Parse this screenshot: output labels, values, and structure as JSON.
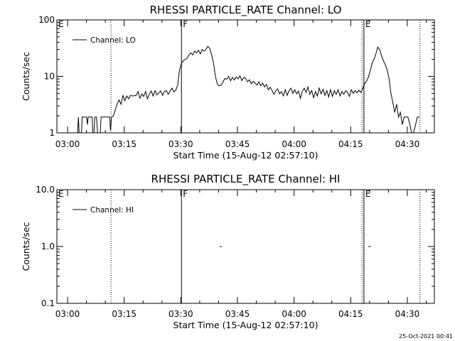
{
  "footer": {
    "timestamp": "25-Oct-2021 00:41"
  },
  "chart_data": [
    {
      "type": "line",
      "title": "RHESSI PARTICLE_RATE Channel: LO",
      "xlabel": "Start Time (15-Aug-12 02:57:10)",
      "ylabel": "Counts/sec",
      "y_scale": "log",
      "ylim": [
        1,
        100
      ],
      "xlim": [
        "02:57:10",
        "04:37:10"
      ],
      "x_ticks": [
        "03:00",
        "03:15",
        "03:30",
        "03:45",
        "04:00",
        "04:15",
        "04:30"
      ],
      "y_ticks": [
        "1",
        "10",
        "100"
      ],
      "legend": {
        "position": "top-left"
      },
      "series": [
        {
          "name": "Channel: LO",
          "points": [
            [
              "03:02:40",
              0.95
            ],
            [
              "03:02:46",
              1.4
            ],
            [
              "03:02:52",
              1.9
            ],
            [
              "03:02:58",
              1.4
            ],
            [
              "03:03:04",
              0.95
            ],
            [
              "03:03:40",
              0.95
            ],
            [
              "03:03:52",
              1.9
            ],
            [
              "03:05:04",
              1.9
            ],
            [
              "03:05:16",
              1.4
            ],
            [
              "03:05:28",
              1.9
            ],
            [
              "03:06:30",
              1.9
            ],
            [
              "03:06:42",
              0.95
            ],
            [
              "03:07:00",
              0.95
            ],
            [
              "03:07:12",
              1.9
            ],
            [
              "03:07:40",
              1.9
            ],
            [
              "03:07:58",
              0.95
            ],
            [
              "03:08:40",
              0.95
            ],
            [
              "03:08:52",
              1.9
            ],
            [
              "03:11:10",
              1.9
            ],
            [
              "03:11:22",
              1.1
            ],
            [
              "03:11:40",
              1.9
            ],
            [
              "03:12:10",
              2.0
            ],
            [
              "03:12:40",
              2.6
            ],
            [
              "03:13:10",
              3.3
            ],
            [
              "03:13:40",
              3.8
            ],
            [
              "03:14:10",
              3.2
            ],
            [
              "03:14:40",
              4.6
            ],
            [
              "03:15:10",
              3.7
            ],
            [
              "03:15:40",
              4.5
            ],
            [
              "03:16:10",
              4.0
            ],
            [
              "03:16:40",
              4.6
            ],
            [
              "03:17:10",
              4.5
            ],
            [
              "03:18:10",
              4.6
            ],
            [
              "03:18:40",
              5.4
            ],
            [
              "03:19:10",
              4.1
            ],
            [
              "03:19:40",
              4.9
            ],
            [
              "03:20:10",
              4.4
            ],
            [
              "03:20:40",
              5.4
            ],
            [
              "03:21:10",
              4.0
            ],
            [
              "03:21:40",
              4.9
            ],
            [
              "03:22:10",
              5.5
            ],
            [
              "03:22:40",
              4.5
            ],
            [
              "03:23:10",
              5.6
            ],
            [
              "03:23:40",
              4.7
            ],
            [
              "03:24:10",
              5.1
            ],
            [
              "03:24:40",
              5.5
            ],
            [
              "03:25:10",
              4.6
            ],
            [
              "03:25:40",
              5.4
            ],
            [
              "03:26:10",
              5.6
            ],
            [
              "03:26:40",
              4.8
            ],
            [
              "03:27:10",
              5.5
            ],
            [
              "03:27:40",
              6.2
            ],
            [
              "03:28:10",
              5.3
            ],
            [
              "03:28:40",
              5.7
            ],
            [
              "03:29:10",
              7.0
            ],
            [
              "03:29:40",
              13
            ],
            [
              "03:30:10",
              17
            ],
            [
              "03:30:40",
              19
            ],
            [
              "03:31:10",
              20
            ],
            [
              "03:31:40",
              21
            ],
            [
              "03:32:10",
              24
            ],
            [
              "03:32:40",
              26
            ],
            [
              "03:33:10",
              24
            ],
            [
              "03:33:40",
              28
            ],
            [
              "03:34:10",
              26
            ],
            [
              "03:34:40",
              29
            ],
            [
              "03:35:10",
              25
            ],
            [
              "03:35:40",
              30
            ],
            [
              "03:36:10",
              28
            ],
            [
              "03:36:40",
              30
            ],
            [
              "03:37:10",
              34
            ],
            [
              "03:37:40",
              31
            ],
            [
              "03:38:10",
              24
            ],
            [
              "03:38:40",
              17
            ],
            [
              "03:39:10",
              10
            ],
            [
              "03:39:40",
              7.3
            ],
            [
              "03:40:10",
              6.8
            ],
            [
              "03:40:40",
              7.0
            ],
            [
              "03:41:10",
              7.9
            ],
            [
              "03:41:40",
              9.2
            ],
            [
              "03:42:10",
              8.9
            ],
            [
              "03:42:40",
              10.0
            ],
            [
              "03:43:10",
              8.4
            ],
            [
              "03:43:40",
              9.6
            ],
            [
              "03:44:10",
              8.6
            ],
            [
              "03:44:40",
              9.8
            ],
            [
              "03:45:10",
              9.0
            ],
            [
              "03:45:40",
              10.2
            ],
            [
              "03:46:10",
              8.4
            ],
            [
              "03:46:40",
              9.6
            ],
            [
              "03:47:10",
              9.2
            ],
            [
              "03:47:40",
              8.0
            ],
            [
              "03:48:10",
              8.7
            ],
            [
              "03:48:40",
              7.4
            ],
            [
              "03:49:10",
              8.2
            ],
            [
              "03:49:40",
              7.6
            ],
            [
              "03:50:10",
              7.0
            ],
            [
              "03:50:40",
              8.0
            ],
            [
              "03:51:10",
              6.8
            ],
            [
              "03:51:40",
              7.6
            ],
            [
              "03:52:10",
              6.5
            ],
            [
              "03:52:40",
              7.2
            ],
            [
              "03:53:10",
              5.8
            ],
            [
              "03:53:40",
              6.4
            ],
            [
              "03:54:10",
              5.6
            ],
            [
              "03:54:40",
              4.8
            ],
            [
              "03:55:10",
              5.6
            ],
            [
              "03:55:40",
              6.0
            ],
            [
              "03:56:10",
              4.9
            ],
            [
              "03:56:40",
              5.4
            ],
            [
              "03:57:10",
              4.5
            ],
            [
              "03:57:40",
              5.8
            ],
            [
              "03:58:10",
              4.6
            ],
            [
              "03:58:40",
              5.6
            ],
            [
              "03:59:10",
              6.2
            ],
            [
              "03:59:40",
              5.0
            ],
            [
              "04:00:10",
              5.8
            ],
            [
              "04:00:40",
              4.9
            ],
            [
              "04:01:10",
              5.5
            ],
            [
              "04:01:40",
              4.1
            ],
            [
              "04:02:10",
              5.4
            ],
            [
              "04:02:40",
              6.2
            ],
            [
              "04:03:10",
              5.2
            ],
            [
              "04:03:40",
              6.5
            ],
            [
              "04:04:10",
              4.8
            ],
            [
              "04:04:40",
              5.6
            ],
            [
              "04:05:10",
              4.2
            ],
            [
              "04:05:40",
              5.4
            ],
            [
              "04:06:10",
              4.5
            ],
            [
              "04:06:40",
              6.2
            ],
            [
              "04:07:10",
              4.9
            ],
            [
              "04:07:40",
              5.9
            ],
            [
              "04:08:10",
              4.6
            ],
            [
              "04:08:40",
              5.6
            ],
            [
              "04:09:10",
              4.3
            ],
            [
              "04:09:40",
              5.8
            ],
            [
              "04:10:10",
              4.4
            ],
            [
              "04:10:40",
              5.6
            ],
            [
              "04:11:10",
              4.8
            ],
            [
              "04:11:40",
              5.8
            ],
            [
              "04:12:10",
              4.5
            ],
            [
              "04:12:40",
              5.4
            ],
            [
              "04:13:10",
              4.8
            ],
            [
              "04:13:40",
              5.6
            ],
            [
              "04:14:10",
              5.2
            ],
            [
              "04:14:40",
              4.4
            ],
            [
              "04:15:10",
              5.8
            ],
            [
              "04:15:40",
              5.0
            ],
            [
              "04:16:10",
              5.6
            ],
            [
              "04:16:40",
              5.1
            ],
            [
              "04:17:10",
              5.7
            ],
            [
              "04:17:40",
              5.2
            ],
            [
              "04:18:10",
              6.0
            ],
            [
              "04:18:40",
              7.4
            ],
            [
              "04:19:10",
              8.2
            ],
            [
              "04:19:40",
              9.6
            ],
            [
              "04:20:10",
              12.5
            ],
            [
              "04:20:40",
              17
            ],
            [
              "04:21:10",
              20
            ],
            [
              "04:21:40",
              25
            ],
            [
              "04:22:10",
              33
            ],
            [
              "04:22:40",
              30
            ],
            [
              "04:23:10",
              23
            ],
            [
              "04:23:40",
              19
            ],
            [
              "04:24:10",
              16
            ],
            [
              "04:24:40",
              13
            ],
            [
              "04:25:10",
              9.0
            ],
            [
              "04:25:40",
              5.0
            ],
            [
              "04:26:10",
              3.4
            ],
            [
              "04:26:40",
              2.3
            ],
            [
              "04:27:10",
              3.2
            ],
            [
              "04:27:40",
              1.9
            ],
            [
              "04:28:10",
              2.3
            ],
            [
              "04:28:40",
              1.4
            ],
            [
              "04:29:10",
              1.9
            ],
            [
              "04:30:10",
              1.9
            ],
            [
              "04:30:40",
              1.4
            ],
            [
              "04:31:10",
              0.95
            ],
            [
              "04:31:40",
              0.95
            ],
            [
              "04:32:10",
              1.4
            ],
            [
              "04:32:40",
              1.9
            ],
            [
              "04:33:10",
              1.9
            ]
          ]
        }
      ],
      "annotations": [
        {
          "label": "E",
          "time": "02:57:10",
          "line": "none"
        },
        {
          "label": "",
          "time": "03:11:30",
          "line": "dotted"
        },
        {
          "label": "F",
          "time": "03:30:10",
          "line": "solid"
        },
        {
          "label": "",
          "time": "04:18:00",
          "line": "dotted"
        },
        {
          "label": "E",
          "time": "04:18:30",
          "line": "solid"
        },
        {
          "label": "",
          "time": "04:33:20",
          "line": "dotted"
        }
      ]
    },
    {
      "type": "line",
      "title": "RHESSI PARTICLE_RATE Channel: HI",
      "xlabel": "Start Time (15-Aug-12 02:57:10)",
      "ylabel": "Counts/sec",
      "y_scale": "log",
      "ylim": [
        0.1,
        10
      ],
      "xlim": [
        "02:57:10",
        "04:37:10"
      ],
      "x_ticks": [
        "03:00",
        "03:15",
        "03:30",
        "03:45",
        "04:00",
        "04:15",
        "04:30"
      ],
      "y_ticks": [
        "0.1",
        "1.0",
        "10.0"
      ],
      "legend": {
        "position": "top-left"
      },
      "series": [
        {
          "name": "Channel: HI",
          "segments": [
            [
              [
                "03:40:20",
                1.0
              ],
              [
                "03:40:50",
                1.0
              ]
            ],
            [
              [
                "04:19:40",
                1.0
              ],
              [
                "04:20:20",
                1.0
              ]
            ]
          ]
        }
      ],
      "annotations": [
        {
          "label": "E",
          "time": "02:57:10",
          "line": "none"
        },
        {
          "label": "",
          "time": "03:11:30",
          "line": "dotted"
        },
        {
          "label": "F",
          "time": "03:30:10",
          "line": "solid"
        },
        {
          "label": "",
          "time": "04:18:00",
          "line": "dotted"
        },
        {
          "label": "E",
          "time": "04:18:30",
          "line": "solid"
        },
        {
          "label": "",
          "time": "04:33:20",
          "line": "dotted"
        }
      ]
    }
  ]
}
